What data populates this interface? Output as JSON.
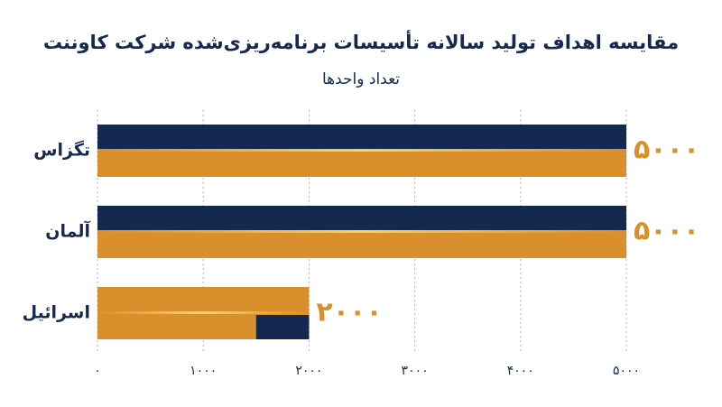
{
  "chart_data": {
    "type": "bar",
    "orientation": "horizontal",
    "title": "مقایسه اهداف تولید سالانه تأسیسات برنامه‌ریزی‌شده شرکت کاوننت",
    "subtitle": "تعداد واحدها",
    "categories": [
      "تگزاس",
      "آلمان",
      "اسرائیل"
    ],
    "values": [
      5000,
      5000,
      2000
    ],
    "value_labels": [
      "۵۰۰۰",
      "۵۰۰۰",
      "۲۰۰۰"
    ],
    "colors": {
      "primary": "#15284f",
      "secondary": "#d98f2b",
      "accent": "#f4d36b"
    },
    "xlim": [
      0,
      5000
    ],
    "xticks": [
      {
        "value": 0,
        "label": "۰"
      },
      {
        "value": 1000,
        "label": "۱۰۰۰"
      },
      {
        "value": 2000,
        "label": "۲۰۰۰"
      },
      {
        "value": 3000,
        "label": "۳۰۰۰"
      },
      {
        "value": 4000,
        "label": "۴۰۰۰"
      },
      {
        "value": 5000,
        "label": "۵۰۰۰"
      }
    ],
    "grid": true
  }
}
